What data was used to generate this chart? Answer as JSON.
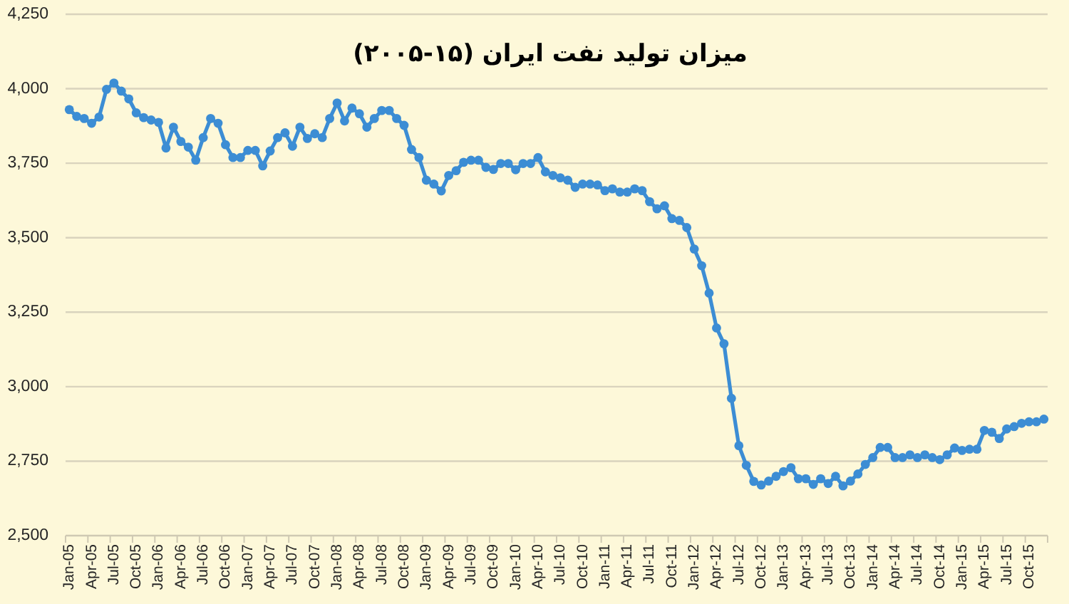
{
  "chart_data": {
    "type": "line",
    "title": "میزان تولید نفت ایران (۱۵-۲۰۰۵)",
    "categories": [
      "Jan-05",
      null,
      null,
      "Apr-05",
      null,
      null,
      "Jul-05",
      null,
      null,
      "Oct-05",
      null,
      null,
      "Jan-06",
      null,
      null,
      "Apr-06",
      null,
      null,
      "Jul-06",
      null,
      null,
      "Oct-06",
      null,
      null,
      "Jan-07",
      null,
      null,
      "Apr-07",
      null,
      null,
      "Jul-07",
      null,
      null,
      "Oct-07",
      null,
      null,
      "Jan-08",
      null,
      null,
      "Apr-08",
      null,
      null,
      "Jul-08",
      null,
      null,
      "Oct-08",
      null,
      null,
      "Jan-09",
      null,
      null,
      "Apr-09",
      null,
      null,
      "Jul-09",
      null,
      null,
      "Oct-09",
      null,
      null,
      "Jan-10",
      null,
      null,
      "Apr-10",
      null,
      null,
      "Jul-10",
      null,
      null,
      "Oct-10",
      null,
      null,
      "Jan-11",
      null,
      null,
      "Apr-11",
      null,
      null,
      "Jul-11",
      null,
      null,
      "Oct-11",
      null,
      null,
      "Jan-12",
      null,
      null,
      "Apr-12",
      null,
      null,
      "Jul-12",
      null,
      null,
      "Oct-12",
      null,
      null,
      "Jan-13",
      null,
      null,
      "Apr-13",
      null,
      null,
      "Jul-13",
      null,
      null,
      "Oct-13",
      null,
      null,
      "Jan-14",
      null,
      null,
      "Apr-14",
      null,
      null,
      "Jul-14",
      null,
      null,
      "Oct-14",
      null,
      null,
      "Jan-15",
      null,
      null,
      "Apr-15",
      null,
      null,
      "Jul-15",
      null,
      null,
      "Oct-15",
      null,
      null
    ],
    "values": [
      3930,
      3907,
      3900,
      3884,
      3905,
      3998,
      4019,
      3992,
      3966,
      3919,
      3903,
      3895,
      3887,
      3801,
      3871,
      3823,
      3804,
      3760,
      3836,
      3900,
      3884,
      3812,
      3769,
      3769,
      3793,
      3793,
      3741,
      3791,
      3836,
      3852,
      3807,
      3871,
      3833,
      3849,
      3836,
      3900,
      3952,
      3892,
      3935,
      3916,
      3871,
      3900,
      3927,
      3927,
      3900,
      3877,
      3796,
      3769,
      3693,
      3680,
      3657,
      3709,
      3725,
      3753,
      3760,
      3760,
      3736,
      3729,
      3749,
      3749,
      3728,
      3749,
      3749,
      3769,
      3721,
      3709,
      3701,
      3693,
      3669,
      3680,
      3680,
      3677,
      3658,
      3664,
      3653,
      3653,
      3664,
      3658,
      3621,
      3597,
      3607,
      3564,
      3558,
      3534,
      3462,
      3406,
      3314,
      3197,
      3144,
      2961,
      2802,
      2736,
      2682,
      2670,
      2683,
      2699,
      2715,
      2728,
      2691,
      2691,
      2672,
      2691,
      2675,
      2699,
      2667,
      2683,
      2707,
      2739,
      2762,
      2796,
      2796,
      2762,
      2762,
      2771,
      2762,
      2771,
      2762,
      2755,
      2771,
      2794,
      2786,
      2790,
      2790,
      2853,
      2847,
      2826,
      2858,
      2866,
      2877,
      2882,
      2882,
      2891
    ],
    "color": "#3c8dd4",
    "ylim": [
      2500,
      4250
    ],
    "yticks": [
      {
        "value": 2500,
        "label": "2,500"
      },
      {
        "value": 2750,
        "label": "2,750"
      },
      {
        "value": 3000,
        "label": "3,000"
      },
      {
        "value": 3250,
        "label": "3,250"
      },
      {
        "value": 3500,
        "label": "3,500"
      },
      {
        "value": 3750,
        "label": "3,750"
      },
      {
        "value": 4000,
        "label": "4,000"
      },
      {
        "value": 4250,
        "label": "4,250"
      }
    ],
    "grid": "y",
    "marker": "circle",
    "line_style": "solid"
  }
}
